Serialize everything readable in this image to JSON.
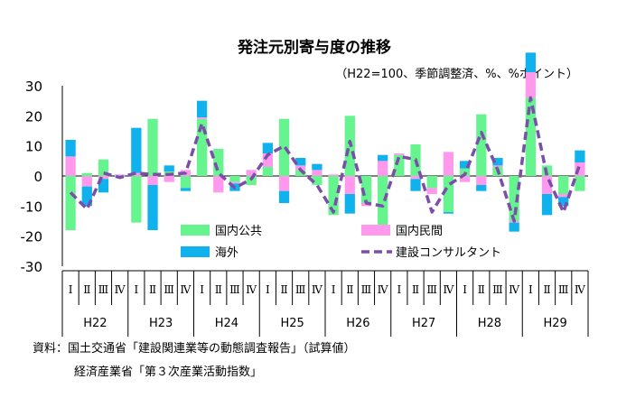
{
  "chart_data": {
    "type": "bar",
    "title": "発注元別寄与度の推移",
    "subtitle": "（H22=100、季節調整済、%、%ポイント）",
    "ylim": [
      -30,
      30
    ],
    "yticks": [
      30,
      20,
      10,
      0,
      -10,
      -20,
      -30
    ],
    "quarters": [
      "Ⅰ",
      "Ⅱ",
      "Ⅲ",
      "Ⅳ"
    ],
    "years": [
      "H22",
      "H23",
      "H24",
      "H25",
      "H26",
      "H27",
      "H28",
      "H29"
    ],
    "bar_mode": "stacked",
    "series": [
      {
        "name": "国内公共",
        "color": "#66f48e",
        "type": "bar",
        "values": [
          -18,
          1,
          5.5,
          -0.5,
          -15.5,
          19,
          1.5,
          -4,
          19,
          9,
          -2,
          -3,
          3,
          19,
          2,
          -3,
          -13,
          20,
          -9,
          -17,
          7,
          10.5,
          -4,
          -12,
          2.5,
          20.5,
          3,
          -15,
          26,
          3.5,
          -6,
          -5
        ]
      },
      {
        "name": "国内民間",
        "color": "#ff99ee",
        "type": "bar",
        "values": [
          6.5,
          -3.5,
          -1,
          0.5,
          1,
          -3,
          -2,
          2,
          0.5,
          -5.5,
          -0.5,
          2,
          4.5,
          -5,
          1.5,
          2,
          0.5,
          -6,
          -1,
          5,
          0.5,
          -1,
          -2,
          8,
          -2,
          -3,
          0.5,
          -0.5,
          8.5,
          -6,
          -1,
          4.5
        ]
      },
      {
        "name": "海外",
        "color": "#0fb2ec",
        "type": "bar",
        "values": [
          5.5,
          -6.5,
          -4.5,
          0,
          15,
          -15,
          2,
          -1,
          5.5,
          0,
          -2.5,
          0,
          3.5,
          -4,
          2.5,
          2,
          0,
          -6.5,
          0,
          2,
          0,
          -4,
          0,
          -0.5,
          2.5,
          -2,
          2.5,
          -3,
          6.5,
          -7,
          -3,
          4
        ]
      },
      {
        "name": "建設コンサルタント",
        "color": "#7b4ea8",
        "type": "line",
        "values": [
          -5.5,
          -11,
          1,
          -0.5,
          1,
          0.5,
          0.5,
          1,
          17.5,
          1,
          -4,
          -1,
          7,
          10,
          2,
          -3,
          -12,
          11.5,
          -9,
          -10,
          6.5,
          5.5,
          -12,
          -3,
          0.5,
          14.5,
          2,
          -15,
          26,
          0,
          -12,
          4
        ]
      }
    ]
  },
  "footnote": {
    "line1": "資料：国土交通省「建設関連業等の動態調査報告」（試算値）",
    "line2": "経済産業省「第３次産業活動指数」"
  }
}
